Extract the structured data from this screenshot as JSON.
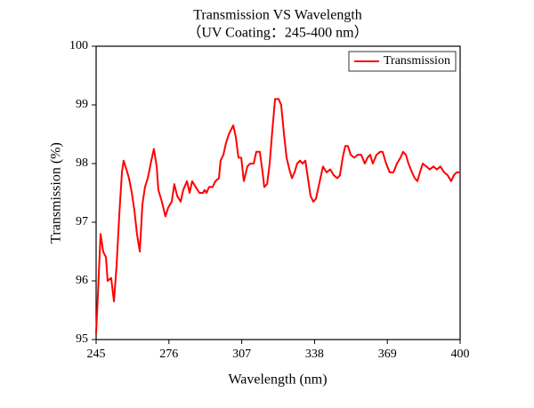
{
  "chart_data": {
    "type": "line",
    "title": "Transmission VS Wavelength",
    "subtitle": "（UV Coating：245-400 nm）",
    "x_label": "Wavelength (nm)",
    "y_label": "Transmission (%)",
    "xlim": [
      245,
      400
    ],
    "ylim": [
      95,
      100
    ],
    "xticks": [
      245,
      276,
      307,
      338,
      369,
      400
    ],
    "yticks": [
      95,
      96,
      97,
      98,
      99,
      100
    ],
    "grid": false,
    "legend": "upper right",
    "x": [
      245.0,
      245.8,
      246.9,
      248.0,
      249.2,
      249.9,
      251.4,
      252.6,
      253.7,
      254.9,
      256.0,
      256.7,
      257.9,
      259.0,
      260.2,
      261.3,
      262.4,
      263.6,
      264.7,
      265.8,
      267.0,
      268.5,
      269.6,
      270.8,
      271.5,
      273.0,
      274.5,
      275.7,
      277.2,
      278.3,
      279.5,
      281.0,
      282.1,
      283.7,
      284.8,
      285.9,
      287.4,
      289.0,
      290.5,
      291.2,
      292.0,
      293.1,
      294.6,
      295.8,
      297.3,
      298.0,
      299.2,
      300.3,
      301.5,
      303.4,
      304.5,
      305.6,
      306.8,
      307.9,
      309.4,
      310.6,
      312.1,
      313.2,
      314.7,
      315.9,
      316.6,
      317.8,
      318.9,
      320.0,
      321.2,
      322.7,
      323.8,
      325.0,
      326.1,
      327.3,
      328.4,
      329.5,
      330.6,
      331.8,
      332.9,
      334.1,
      335.2,
      336.3,
      337.5,
      338.6,
      339.7,
      341.6,
      343.1,
      344.7,
      346.2,
      347.7,
      348.8,
      350.0,
      351.1,
      352.2,
      353.4,
      354.9,
      356.4,
      357.9,
      359.4,
      360.6,
      361.7,
      362.8,
      364.4,
      365.9,
      367.0,
      368.5,
      370.0,
      371.6,
      373.1,
      374.6,
      375.7,
      376.9,
      378.0,
      379.5,
      380.7,
      381.8,
      382.9,
      384.1,
      385.6,
      387.1,
      388.6,
      390.1,
      391.6,
      393.2,
      394.7,
      396.2,
      397.3,
      398.5,
      400.0
    ],
    "series": [
      {
        "name": "Transmission",
        "color": "#ff0000",
        "values": [
          95.1,
          95.8,
          96.8,
          96.5,
          96.4,
          96.0,
          96.05,
          95.65,
          96.25,
          97.15,
          97.85,
          98.05,
          97.9,
          97.75,
          97.5,
          97.2,
          96.8,
          96.5,
          97.3,
          97.6,
          97.75,
          98.05,
          98.25,
          97.95,
          97.55,
          97.35,
          97.1,
          97.25,
          97.35,
          97.65,
          97.45,
          97.35,
          97.55,
          97.7,
          97.5,
          97.7,
          97.6,
          97.5,
          97.5,
          97.55,
          97.5,
          97.6,
          97.6,
          97.7,
          97.75,
          98.05,
          98.15,
          98.35,
          98.5,
          98.65,
          98.45,
          98.1,
          98.1,
          97.7,
          97.95,
          98.0,
          98.0,
          98.2,
          98.2,
          97.85,
          97.6,
          97.65,
          98.0,
          98.55,
          99.1,
          99.1,
          99.0,
          98.5,
          98.1,
          97.9,
          97.75,
          97.85,
          98.0,
          98.05,
          98.0,
          98.05,
          97.75,
          97.45,
          97.35,
          97.4,
          97.6,
          97.95,
          97.85,
          97.9,
          97.8,
          97.75,
          97.8,
          98.1,
          98.3,
          98.3,
          98.15,
          98.1,
          98.15,
          98.15,
          98.0,
          98.1,
          98.15,
          98.0,
          98.15,
          98.2,
          98.2,
          98.0,
          97.85,
          97.85,
          98.0,
          98.1,
          98.2,
          98.15,
          98.0,
          97.85,
          97.75,
          97.7,
          97.85,
          98.0,
          97.95,
          97.9,
          97.95,
          97.9,
          97.95,
          97.85,
          97.8,
          97.7,
          97.8,
          97.85,
          97.85
        ]
      }
    ]
  }
}
